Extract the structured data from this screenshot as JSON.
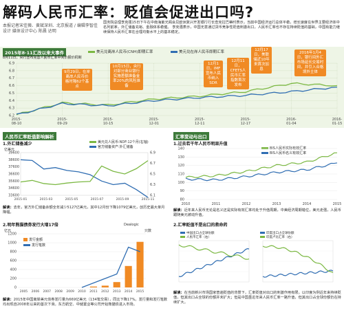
{
  "header": {
    "title": "解码人民币汇率：贬值会促进出口吗?",
    "byline": "本报记者宋佳薇、黄斌深圳、北京报道 / 编辑李智佳 设计 媒体设计中心 陈晨 达明",
    "intro": "国务院总理李克强15日下午在中南海紫光阁会见欧洲复兴开发银行行长查克拉巴蒂时表示，当前中国经济运行总体平稳，增长速度在世界主要经济体中名列前茅，外汇储备充裕、金融体系稳健。 李克强表示，中国无意通过货币竞争性贬值刺激出口，人民币汇率也不存在持续贬值的基础，中国有能力继续保持人民币汇率在合理均衡水平上的基本稳定。"
  },
  "top": {
    "title": "2015年8·11汇改以来大事件",
    "subtitle": "8月11日，央行宣布完善人民币汇率中间价报价机制",
    "legend": [
      "美元兑离岸人民币(CNH)即期汇率",
      "美元兑在岸人民币即期汇率"
    ],
    "yticks": [
      "6.9",
      "6.8",
      "6.7",
      "6.6",
      "6.5",
      "6.4",
      "6.3",
      "6.2"
    ],
    "xticks": [
      "2015-08-10",
      "2015-09-29",
      "2015-10-15",
      "2015-12-01",
      "2015-12-11",
      "2015-12-17",
      "2016-01-04",
      "2016-01-15"
    ],
    "callouts": [
      {
        "text": "9月29日，在岸离岸人民币价格时隔62个基点",
        "style": "o"
      },
      {
        "text": "10月15日，央行对部分商业银行实施差额准备金率20%的风险准备",
        "style": "o"
      },
      {
        "text": "12月1日，IMF宣布人民币纳入SDR",
        "style": "o"
      },
      {
        "text": "12月11日，CFETS人民币汇率指数首次发布",
        "style": "o"
      },
      {
        "text": "12月17日，美联储近10年来首次加息",
        "style": "o"
      },
      {
        "text": "2016年1月4日，银行间外汇市场延长交易时间，并引入合格境外主体",
        "style": "o"
      }
    ]
  },
  "p1": {
    "section": "人民币汇率贬值影响解析",
    "title": "1.外汇储备减少",
    "unit": "亿美元",
    "legend": [
      "美元兑人民币:NDF:12个月(右轴)",
      "官方储备资产:外汇储备"
    ],
    "yticks_left": [
      "39600",
      "38600",
      "37600",
      "36600",
      "35600",
      "34600",
      "33600"
    ],
    "yticks_right": [
      "6.9",
      "6.7",
      "6.5",
      "6.3",
      "6.1"
    ],
    "xticks": [
      "2015-01",
      "2015-03",
      "2015-05",
      "2015-07",
      "2015-09",
      "2015-11"
    ],
    "note_label": "解读：",
    "note": "去年，官方外汇储备余额全年减少5127亿美元，其中12月份下降1079亿美元，创历史最大单月降幅。"
  },
  "p2": {
    "section": "汇率变动与出口",
    "title": "1.过去若干年人民币明显升值",
    "legend": [
      "BIS人民币实际有效汇率",
      "BIS人民币名义有效汇率"
    ],
    "yticks": [
      "140",
      "130",
      "120",
      "110",
      "100",
      "90",
      "80"
    ],
    "xticks": [
      "2010",
      "2011",
      "2012",
      "2013",
      "2014",
      "2015"
    ],
    "note_label": "解读：",
    "note": "近年来人民币无论是名义还是实际有效汇率均处于升值周期，中美经济周期错位，美元走强，人民币跟随美元被动升值。"
  },
  "p3": {
    "title": "2.明年熊猫债券发行大增17倍",
    "unit_left": "亿元",
    "unit_right": "只数",
    "source": "Dealogic",
    "legend": [
      "发行金额",
      "发行笔数"
    ],
    "yticks_left": [
      "1200",
      "1000",
      "800",
      "600",
      "400",
      "200",
      "0"
    ],
    "xticks": [
      "2005",
      "2006",
      "2007",
      "2008",
      "2009",
      "2010",
      "2011",
      "2012",
      "2013",
      "2014",
      "2015"
    ],
    "note_label": "解读：",
    "note": "2015年中国离岸美元债券发行量为669亿美元（134笔交易），同比下降17%。发行量和发行笔数均出现自2008年以来的首次下滑。东方航空、中储置业等公司开始熊猫债进入市场。"
  },
  "p4": {
    "title": "2.汇率贬值不是出口的救命药",
    "legend_a": [
      "中国出口占全球份额",
      "人民币汇率（右）"
    ],
    "legend_b": [
      "印度出口占全球份额",
      "印度卢比汇率（右）"
    ],
    "note_label": "解读：",
    "note": "在当前新兴市场国家普遍贬值的背景下，汇率贬值对出口的刺激作用有限。以印度为例近年来持续贬值，但其出口占全球的份额并未扩大；但是中国虽近年来人民币汇率一路升值，但其出口占全球份额仍在持续扩大。"
  },
  "chart_data": [
    {
      "type": "line",
      "title": "2015年8·11汇改以来大事件",
      "x": [
        "2015-08-10",
        "2015-09-29",
        "2015-10-15",
        "2015-12-01",
        "2015-12-11",
        "2015-12-17",
        "2016-01-04",
        "2016-01-15"
      ],
      "series": [
        {
          "name": "美元兑离岸人民币(CNH)即期汇率",
          "color": "#7bb842",
          "values": [
            6.21,
            6.37,
            6.34,
            6.42,
            6.46,
            6.52,
            6.63,
            6.6
          ]
        },
        {
          "name": "美元兑在岸人民币即期汇率",
          "color": "#2f6db2",
          "values": [
            6.21,
            6.36,
            6.33,
            6.4,
            6.44,
            6.47,
            6.52,
            6.58
          ]
        }
      ],
      "ylim": [
        6.2,
        6.9
      ]
    },
    {
      "type": "line",
      "title": "1.外汇储备减少",
      "x": [
        "2015-01",
        "2015-02",
        "2015-03",
        "2015-04",
        "2015-05",
        "2015-06",
        "2015-07",
        "2015-08",
        "2015-09",
        "2015-10",
        "2015-11",
        "2015-12"
      ],
      "series": [
        {
          "name": "美元兑人民币:NDF:12个月(右轴)",
          "color": "#7bb842",
          "values": [
            6.35,
            6.38,
            6.32,
            6.3,
            6.33,
            6.35,
            6.36,
            6.65,
            6.55,
            6.5,
            6.6,
            6.75
          ]
        },
        {
          "name": "官方储备资产:外汇储备",
          "color": "#2f6db2",
          "values": [
            38600,
            38500,
            37300,
            37500,
            37100,
            36900,
            36500,
            35600,
            35100,
            35300,
            34400,
            33300
          ]
        }
      ]
    },
    {
      "type": "line",
      "title": "1.过去若干年人民币明显升值",
      "x": [
        "2010",
        "2011",
        "2012",
        "2013",
        "2014",
        "2015"
      ],
      "series": [
        {
          "name": "BIS人民币实际有效汇率",
          "color": "#7bb842",
          "values": [
            106,
            108,
            113,
            120,
            124,
            135
          ]
        },
        {
          "name": "BIS人民币名义有效汇率",
          "color": "#2f6db2",
          "values": [
            104,
            103,
            107,
            112,
            115,
            123
          ]
        }
      ],
      "ylim": [
        80,
        140
      ]
    },
    {
      "type": "bar",
      "title": "2.明年熊猫债券发行大增17倍",
      "categories": [
        "2005",
        "2006",
        "2007",
        "2008",
        "2009",
        "2010",
        "2011",
        "2012",
        "2013",
        "2014",
        "2015"
      ],
      "series": [
        {
          "name": "发行金额",
          "color": "#f08a24",
          "values": [
            0,
            0,
            0,
            0,
            0,
            0,
            20,
            40,
            120,
            480,
            1020
          ]
        },
        {
          "name": "发行笔数",
          "color": "#2f6db2",
          "values": [
            0,
            0,
            0,
            0,
            0,
            0,
            5,
            10,
            15,
            45,
            40
          ]
        }
      ],
      "ylim": [
        0,
        1200
      ]
    }
  ]
}
